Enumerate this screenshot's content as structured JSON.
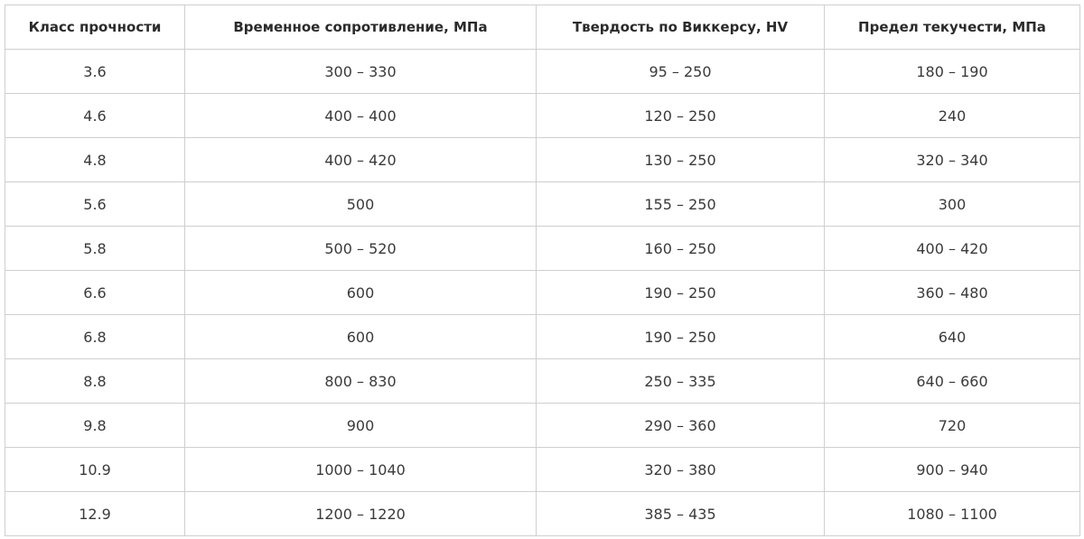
{
  "table": {
    "headers": [
      "Класс прочности",
      "Временное сопротивление, МПа",
      "Твердость по Виккерсу, HV",
      "Предел текучести, МПа"
    ],
    "rows": [
      [
        "3.6",
        "300 – 330",
        "95 – 250",
        "180 – 190"
      ],
      [
        "4.6",
        "400 – 400",
        "120 – 250",
        "240"
      ],
      [
        "4.8",
        "400 – 420",
        "130 – 250",
        "320 – 340"
      ],
      [
        "5.6",
        "500",
        "155 – 250",
        "300"
      ],
      [
        "5.8",
        "500 – 520",
        "160 – 250",
        "400 – 420"
      ],
      [
        "6.6",
        "600",
        "190 – 250",
        "360 – 480"
      ],
      [
        "6.8",
        "600",
        "190 – 250",
        "640"
      ],
      [
        "8.8",
        "800 – 830",
        "250 – 335",
        "640 – 660"
      ],
      [
        "9.8",
        "900",
        "290 – 360",
        "720"
      ],
      [
        "10.9",
        "1000 – 1040",
        "320 – 380",
        "900 – 940"
      ],
      [
        "12.9",
        "1200 – 1220",
        "385 – 435",
        "1080 – 1100"
      ]
    ]
  }
}
